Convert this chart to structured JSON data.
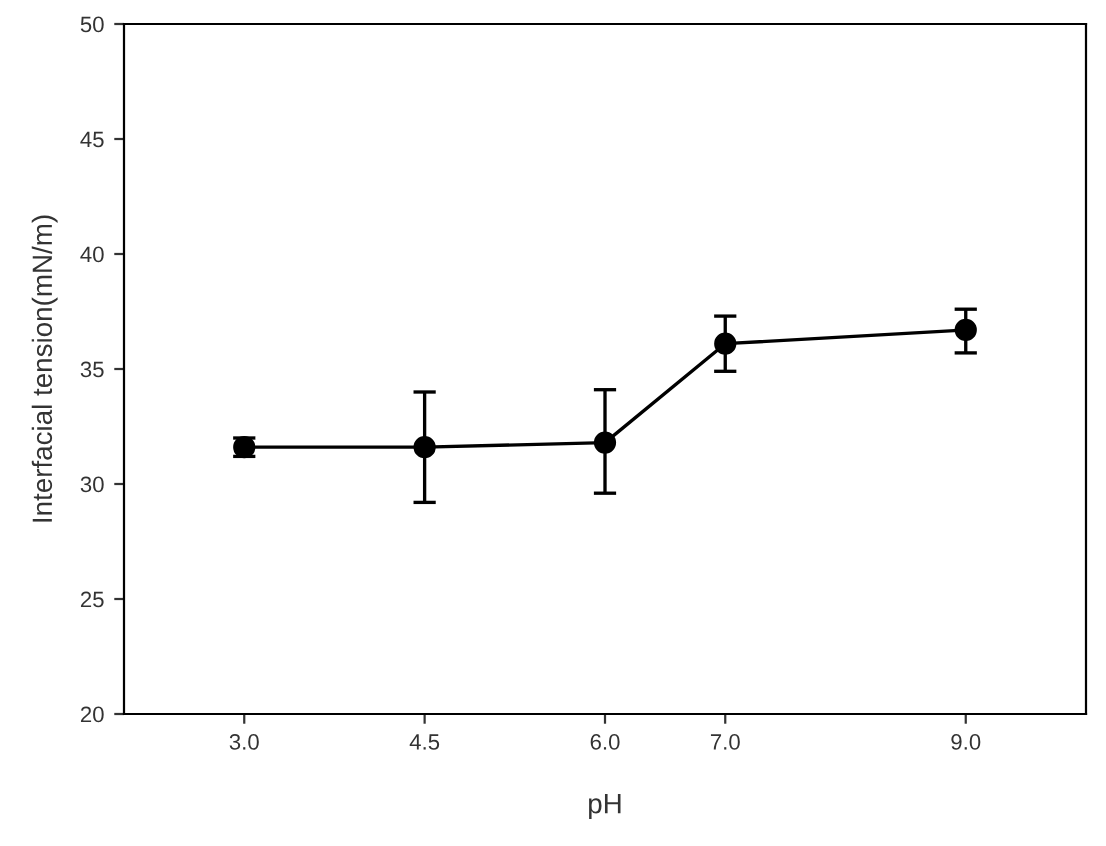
{
  "chart_data": {
    "type": "line",
    "xlabel": "pH",
    "ylabel": "Interfacial tension(mN/m)",
    "x": [
      3.0,
      4.5,
      6.0,
      7.0,
      9.0
    ],
    "series": [
      {
        "color": "#000000",
        "values": [
          31.6,
          31.6,
          31.8,
          36.1,
          36.7
        ],
        "errors": [
          [
            31.2,
            32.0
          ],
          [
            29.2,
            34.0
          ],
          [
            29.6,
            34.1
          ],
          [
            34.9,
            37.3
          ],
          [
            35.7,
            37.6
          ]
        ]
      }
    ],
    "xlim": [
      2,
      10
    ],
    "xticks": [
      {
        "value": 3,
        "label": "3.0"
      },
      {
        "value": 4.5,
        "label": "4.5"
      },
      {
        "value": 6,
        "label": "6.0"
      },
      {
        "value": 7,
        "label": "7.0"
      },
      {
        "value": 9,
        "label": "9.0"
      }
    ],
    "ylim": [
      20,
      50
    ],
    "yticks": [
      20,
      25,
      30,
      35,
      40,
      45,
      50
    ],
    "marker": "circle",
    "line_style": "solid",
    "grid": false,
    "legend": false
  }
}
